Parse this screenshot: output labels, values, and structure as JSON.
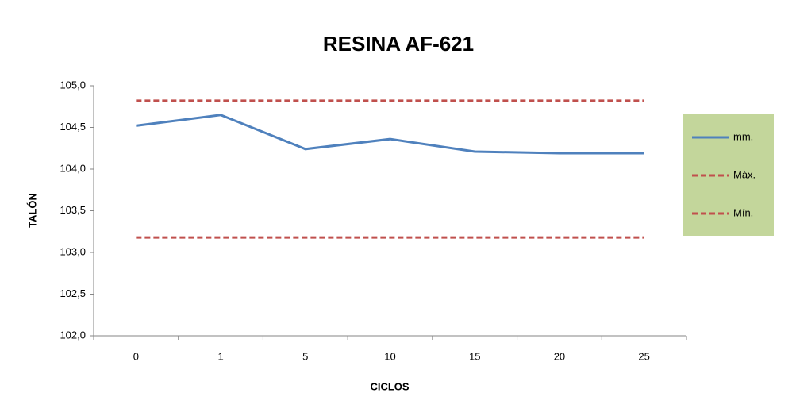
{
  "chart_data": {
    "type": "line",
    "title": "RESINA AF-621",
    "x_label": "CICLOS",
    "y_label": "TALÓN",
    "categories": [
      "0",
      "1",
      "5",
      "10",
      "15",
      "20",
      "25"
    ],
    "series": [
      {
        "name": "mm.",
        "color": "#4f81bd",
        "dash": false,
        "values": [
          104.52,
          104.65,
          104.24,
          104.36,
          104.21,
          104.19,
          104.19
        ]
      },
      {
        "name": "Máx.",
        "color": "#c0504d",
        "dash": true,
        "values": [
          104.82,
          104.82,
          104.82,
          104.82,
          104.82,
          104.82,
          104.82
        ]
      },
      {
        "name": "Mín.",
        "color": "#c0504d",
        "dash": true,
        "values": [
          103.18,
          103.18,
          103.18,
          103.18,
          103.18,
          103.18,
          103.18
        ]
      }
    ],
    "ylim": [
      102,
      105
    ],
    "yticks": [
      {
        "value": 102,
        "label": "102,0"
      },
      {
        "value": 102.5,
        "label": "102,5"
      },
      {
        "value": 103,
        "label": "103,0"
      },
      {
        "value": 103.5,
        "label": "103,5"
      },
      {
        "value": 104,
        "label": "104,0"
      },
      {
        "value": 104.5,
        "label": "104,5"
      },
      {
        "value": 105,
        "label": "105,0"
      }
    ],
    "grid": false,
    "legend": "right",
    "legend_color": "#c3d69b"
  }
}
